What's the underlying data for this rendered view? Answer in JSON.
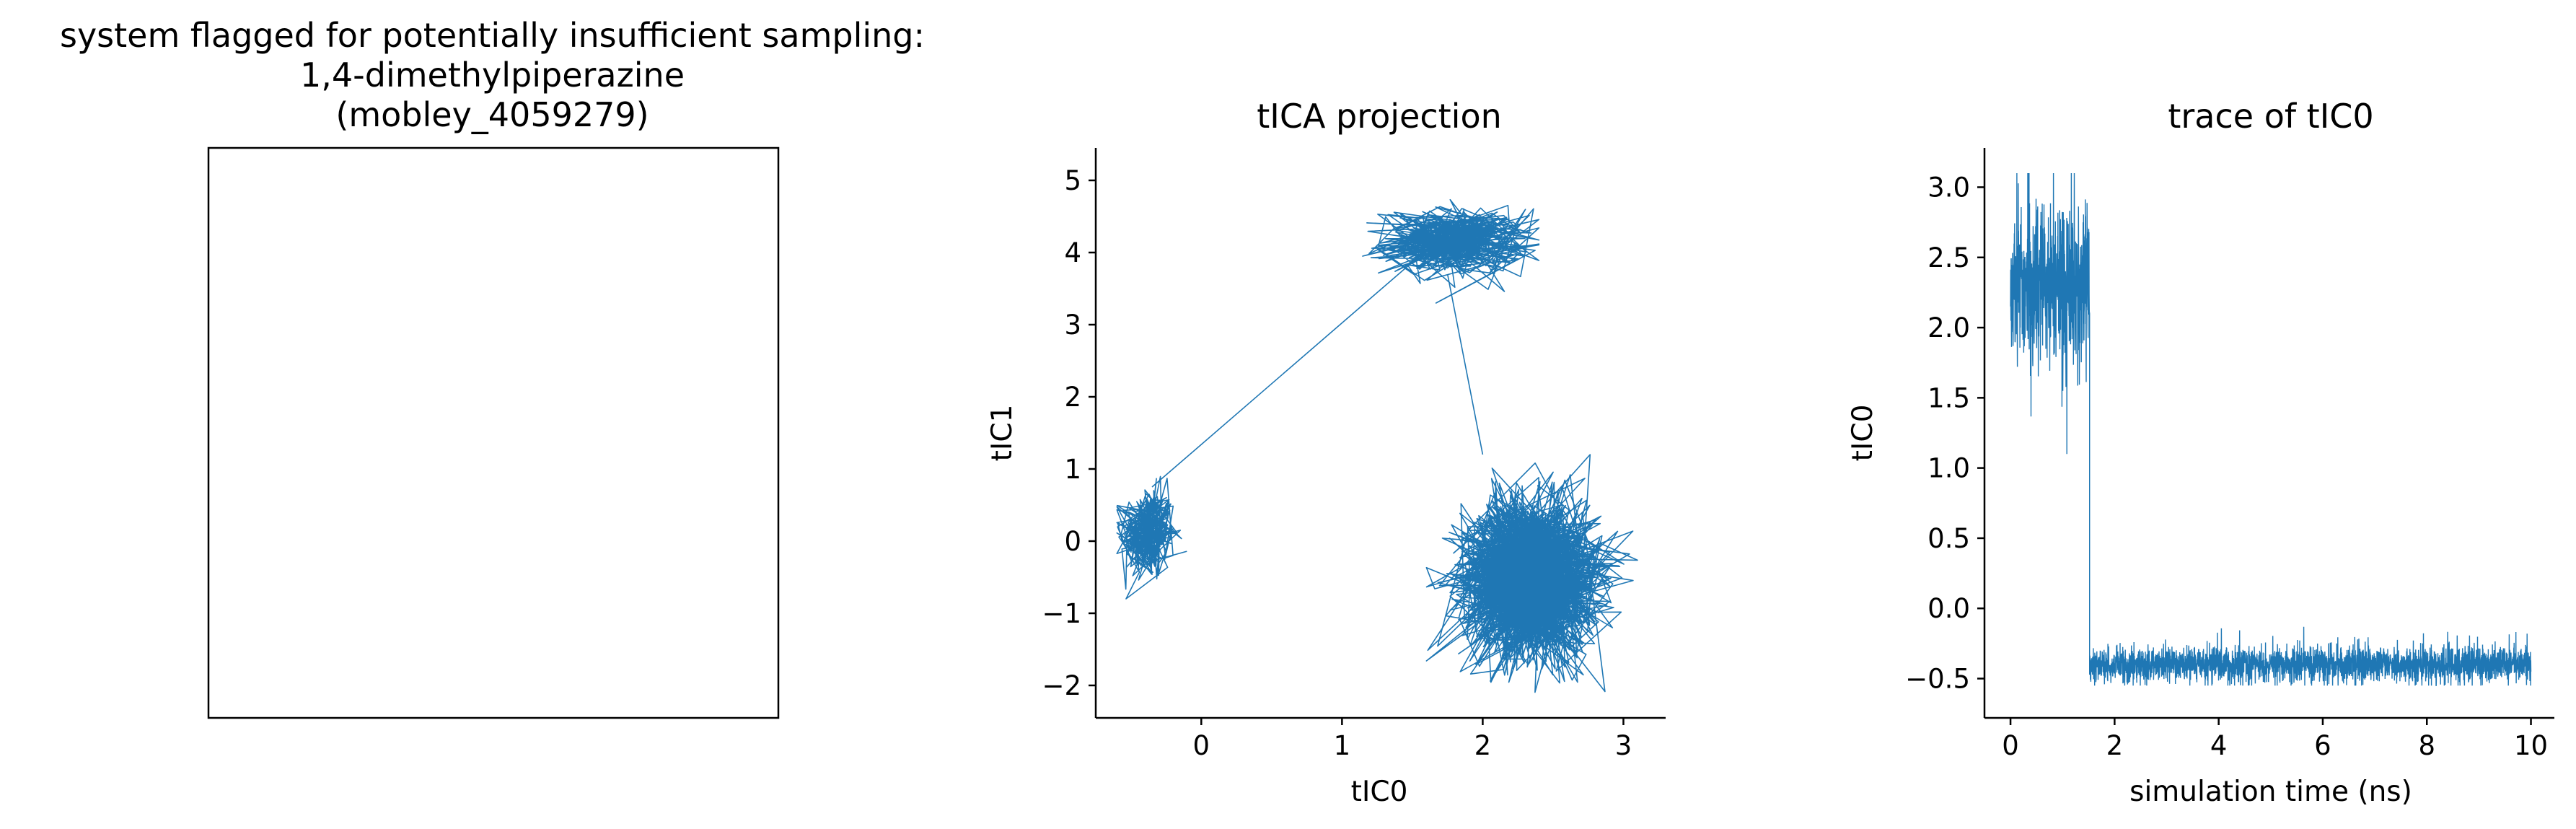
{
  "panel1": {
    "title_lines": [
      "system flagged for potentially insufficient sampling:",
      "1,4-dimethylpiperazine",
      "(mobley_4059279)"
    ]
  },
  "chart_data": [
    {
      "type": "line",
      "title": "tICA projection",
      "xlabel": "tIC0",
      "ylabel": "tIC1",
      "xlim": [
        -0.75,
        3.3
      ],
      "ylim": [
        -2.45,
        5.45
      ],
      "xticks": [
        0,
        1,
        2,
        3
      ],
      "yticks": [
        -2,
        -1,
        0,
        1,
        2,
        3,
        4,
        5
      ],
      "xtick_labels": [
        "0",
        "1",
        "2",
        "3"
      ],
      "ytick_labels": [
        "−2",
        "−1",
        "0",
        "1",
        "2",
        "3",
        "4",
        "5"
      ],
      "color": "#1f77b4",
      "clusters": [
        {
          "center": [
            -0.38,
            0.1
          ],
          "spread": [
            0.1,
            0.33
          ],
          "approx_points": 300,
          "x_range": [
            -0.6,
            0.0
          ],
          "y_range": [
            -0.8,
            1.25
          ]
        },
        {
          "center": [
            1.8,
            4.15
          ],
          "spread": [
            0.26,
            0.23
          ],
          "approx_points": 400,
          "x_range": [
            1.1,
            2.4
          ],
          "y_range": [
            3.3,
            5.1
          ]
        },
        {
          "center": [
            2.35,
            -0.5
          ],
          "spread": [
            0.25,
            0.55
          ],
          "approx_points": 1500,
          "x_range": [
            1.6,
            3.1
          ],
          "y_range": [
            -2.1,
            1.2
          ]
        }
      ],
      "transitions": [
        [
          [
            -0.35,
            0.75
          ],
          [
            1.55,
            3.95
          ]
        ],
        [
          [
            1.75,
            3.7
          ],
          [
            2.0,
            1.2
          ]
        ]
      ],
      "grid": false
    },
    {
      "type": "line",
      "title": "trace of tIC0",
      "xlabel": "simulation time (ns)",
      "ylabel": "tIC0",
      "xlim": [
        -0.5,
        10.45
      ],
      "ylim": [
        -0.78,
        3.28
      ],
      "xticks": [
        0,
        2,
        4,
        6,
        8,
        10
      ],
      "yticks": [
        -0.5,
        0.0,
        0.5,
        1.0,
        1.5,
        2.0,
        2.5,
        3.0
      ],
      "xtick_labels": [
        "0",
        "2",
        "4",
        "6",
        "8",
        "10"
      ],
      "ytick_labels": [
        "−0.5",
        "0.0",
        "0.5",
        "1.0",
        "1.5",
        "2.0",
        "2.5",
        "3.0"
      ],
      "color": "#1f77b4",
      "segments": [
        {
          "t_range": [
            0.0,
            1.52
          ],
          "mean": 2.3,
          "noise": 0.28,
          "min": 1.1,
          "max": 3.1
        },
        {
          "t_range": [
            1.52,
            10.0
          ],
          "mean": -0.4,
          "noise": 0.06,
          "min": -0.55,
          "max": -0.05
        }
      ],
      "grid": false
    }
  ]
}
